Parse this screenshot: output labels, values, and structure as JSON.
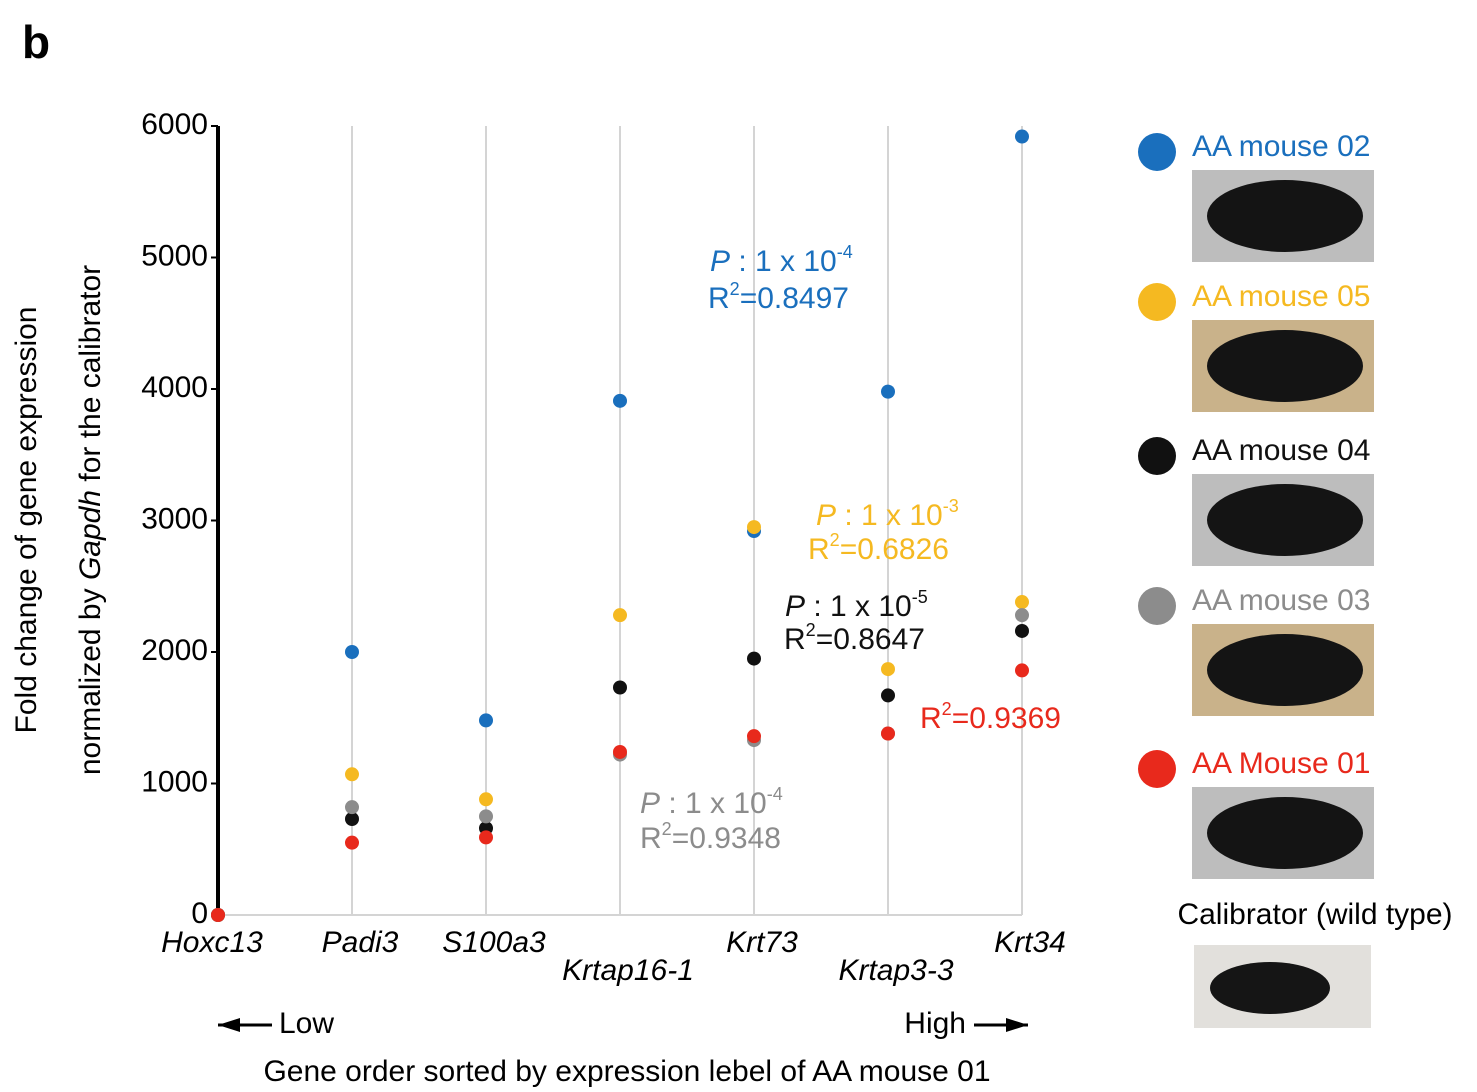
{
  "panel_label": "b",
  "chart_data": {
    "type": "dot",
    "y_label": {
      "line1": "Fold change of gene expression",
      "line2_before": "normalized by ",
      "line2_italic": "Gapdh",
      "line2_after": " for the calibrator"
    },
    "x_label": "Gene order sorted by expression lebel of AA mouse 01",
    "x_low": "Low",
    "x_high": "High",
    "categories": [
      "Hoxc13",
      "Padi3",
      "S100a3",
      "Krtap16-1",
      "Krt73",
      "Krtap3-3",
      "Krt34"
    ],
    "ylim": [
      0,
      6000
    ],
    "yticks": [
      0,
      1000,
      2000,
      3000,
      4000,
      5000,
      6000
    ],
    "grid": true,
    "series": [
      {
        "name": "AA mouse 02",
        "color": "#1a6fbd",
        "values": [
          0,
          2000,
          1480,
          3910,
          2920,
          3980,
          5920
        ]
      },
      {
        "name": "AA mouse 05",
        "color": "#f5b921",
        "values": [
          0,
          1070,
          880,
          2280,
          2950,
          1870,
          2380
        ]
      },
      {
        "name": "AA mouse 04",
        "color": "#111111",
        "values": [
          0,
          730,
          660,
          1730,
          1950,
          1670,
          2160
        ]
      },
      {
        "name": "AA mouse 03",
        "color": "#8c8c8c",
        "values": [
          0,
          820,
          750,
          1220,
          1330,
          1380,
          2280
        ]
      },
      {
        "name": "AA Mouse 01",
        "color": "#e8291c",
        "values": [
          0,
          550,
          590,
          1240,
          1360,
          1380,
          1860
        ]
      }
    ],
    "calibrator": "Calibrator (wild type)",
    "annotations": [
      {
        "color": "#1a6fbd",
        "p_symbol": "P",
        "p_text": " : 1 x 10",
        "p_exponent": "-4",
        "r_symbol": "R",
        "r_exponent": "2",
        "r_text": "=0.8497"
      },
      {
        "color": "#f5b921",
        "p_symbol": "P",
        "p_text": " : 1 x 10",
        "p_exponent": "-3",
        "r_symbol": "R",
        "r_exponent": "2",
        "r_text": "=0.6826"
      },
      {
        "color": "#111111",
        "p_symbol": "P",
        "p_text": " : 1 x 10",
        "p_exponent": "-5",
        "r_symbol": "R",
        "r_exponent": "2",
        "r_text": "=0.8647"
      },
      {
        "color": "#8c8c8c",
        "p_symbol": "P",
        "p_text": " : 1 x 10",
        "p_exponent": "-4",
        "r_symbol": "R",
        "r_exponent": "2",
        "r_text": "=0.9348"
      },
      {
        "color": "#e8291c",
        "r_symbol": "R",
        "r_exponent": "2",
        "r_text": "=0.9369"
      }
    ]
  }
}
